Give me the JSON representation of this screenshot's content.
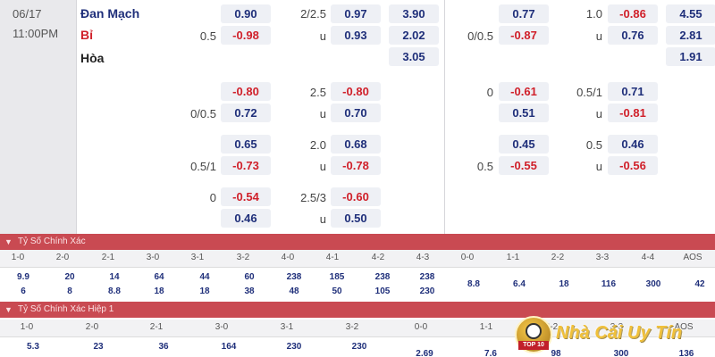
{
  "match": {
    "date": "06/17",
    "time": "11:00PM",
    "home": "Đan Mạch",
    "away": "Bỉ",
    "draw": "Hòa"
  },
  "full_time": {
    "rows": [
      {
        "hcap": "0.5",
        "h_home": "0.90",
        "h_away": "-0.98",
        "ou_line": "2/2.5",
        "ou_under_label": "u",
        "ou_over": "0.97",
        "ou_under": "0.93",
        "x_home": "3.90",
        "x_away": "2.02",
        "x_draw": "3.05"
      },
      {
        "hcap": "0/0.5",
        "h_home": "-0.80",
        "h_away": "0.72",
        "ou_line": "2.5",
        "ou_under_label": "u",
        "ou_over": "-0.80",
        "ou_under": "0.70"
      },
      {
        "hcap": "0.5/1",
        "h_home": "0.65",
        "h_away": "-0.73",
        "ou_line": "2.0",
        "ou_under_label": "u",
        "ou_over": "0.68",
        "ou_under": "-0.78"
      },
      {
        "hcap": "0",
        "h_home": "-0.54",
        "h_away": "0.46",
        "ou_line": "2.5/3",
        "ou_under_label": "u",
        "ou_over": "-0.60",
        "ou_under": "0.50"
      }
    ]
  },
  "first_half": {
    "rows": [
      {
        "hcap": "0/0.5",
        "h_home": "0.77",
        "h_away": "-0.87",
        "ou_line": "1.0",
        "ou_under_label": "u",
        "ou_over": "-0.86",
        "ou_under": "0.76",
        "x_home": "4.55",
        "x_away": "2.81",
        "x_draw": "1.91"
      },
      {
        "hcap": "0",
        "h_home": "-0.61",
        "h_away": "0.51",
        "ou_line": "0.5/1",
        "ou_under_label": "u",
        "ou_over": "0.71",
        "ou_under": "-0.81"
      },
      {
        "hcap": "0.5",
        "h_home": "0.45",
        "h_away": "-0.55",
        "ou_line": "0.5",
        "ou_under_label": "u",
        "ou_over": "0.46",
        "ou_under": "-0.56"
      }
    ]
  },
  "correct_score": {
    "title": "Tỷ Số Chính Xác",
    "headers": [
      "1-0",
      "2-0",
      "2-1",
      "3-0",
      "3-1",
      "3-2",
      "4-0",
      "4-1",
      "4-2",
      "4-3",
      "0-0",
      "1-1",
      "2-2",
      "3-3",
      "4-4",
      "AOS"
    ],
    "home_row": [
      "9.9",
      "20",
      "14",
      "64",
      "44",
      "60",
      "238",
      "185",
      "238",
      "238"
    ],
    "away_row": [
      "6",
      "8",
      "8.8",
      "18",
      "18",
      "38",
      "48",
      "50",
      "105",
      "230"
    ],
    "draw_row": [
      "8.8",
      "6.4",
      "18",
      "116",
      "300",
      "42"
    ]
  },
  "correct_score_h1": {
    "title": "Tỷ Số Chính Xác Hiệp 1",
    "headers": [
      "1-0",
      "2-0",
      "2-1",
      "3-0",
      "3-1",
      "3-2",
      "0-0",
      "1-1",
      "2-2",
      "3-3",
      "AOS"
    ],
    "home_row": [
      "5.3",
      "23",
      "36",
      "164",
      "230",
      "230"
    ],
    "draw_row": [
      "2.69",
      "7.6",
      "98",
      "300",
      "136"
    ]
  },
  "watermark": {
    "badge_text": "TOP 10",
    "brand": "Nhà Cái Uy Tín"
  },
  "colors": {
    "positive": "#1f2f7a",
    "negative": "#d0202a",
    "section": "#c94a52"
  }
}
